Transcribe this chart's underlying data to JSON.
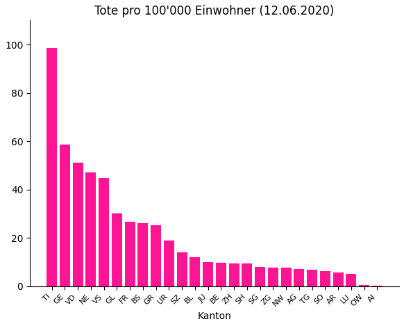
{
  "title": "Tote pro 100'000 Einwohner (12.06.2020)",
  "xlabel": "Kanton",
  "ylabel": "",
  "categories": [
    "TI",
    "GE",
    "VD",
    "NE",
    "VS",
    "GL",
    "FR",
    "BS",
    "GR",
    "UR",
    "SZ",
    "BL",
    "JU",
    "BE",
    "ZH",
    "SH",
    "SG",
    "ZG",
    "NW",
    "AG",
    "TG",
    "SO",
    "AR",
    "LU",
    "OW",
    "AI"
  ],
  "values": [
    98.5,
    58.5,
    51.0,
    47.0,
    44.8,
    30.2,
    26.8,
    26.0,
    25.3,
    19.0,
    14.0,
    12.0,
    10.0,
    9.8,
    9.5,
    9.3,
    8.0,
    7.8,
    7.8,
    7.2,
    6.8,
    6.2,
    5.8,
    5.2,
    0.5,
    0.3
  ],
  "bar_color": "#FF1493",
  "figsize": [
    5.82,
    4.69
  ],
  "dpi": 100,
  "ylim": [
    0,
    110
  ],
  "yticks": [
    0,
    20,
    40,
    60,
    80,
    100
  ]
}
